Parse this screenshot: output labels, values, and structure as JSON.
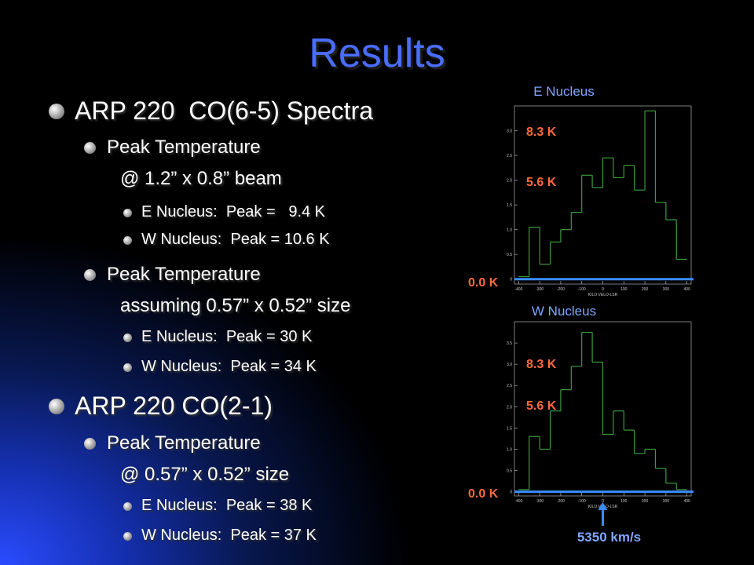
{
  "title": "Results",
  "bullets": [
    {
      "text": "ARP 220  CO(6-5) Spectra",
      "items": [
        {
          "lines": [
            "Peak Temperature",
            "@ 1.2” x 0.8” beam"
          ],
          "items": [
            "E Nucleus:  Peak =   9.4 K",
            "W Nucleus:  Peak = 10.6 K"
          ]
        },
        {
          "lines": [
            "Peak Temperature",
            "assuming 0.57” x 0.52” size"
          ],
          "items": [
            "E Nucleus:  Peak = 30 K",
            "W Nucleus:  Peak = 34 K"
          ]
        }
      ]
    },
    {
      "text": "ARP 220 CO(2-1)",
      "items": [
        {
          "lines": [
            "Peak Temperature",
            "@ 0.57” x 0.52” size"
          ],
          "items": [
            "E Nucleus:  Peak = 38 K",
            "W Nucleus:  Peak = 37 K"
          ]
        }
      ]
    }
  ],
  "spectra": [
    {
      "title": "E Nucleus",
      "labels": [
        "8.3 K",
        "5.6 K",
        "0.0 K"
      ],
      "xlabel": "KILO VELO-LSR",
      "bins": [
        -400,
        -350,
        -300,
        -250,
        -200,
        -150,
        -100,
        -50,
        0,
        50,
        100,
        150,
        200,
        250,
        300,
        350,
        400
      ],
      "values": [
        0.05,
        1.05,
        0.3,
        0.75,
        1.0,
        1.35,
        2.1,
        1.85,
        2.45,
        2.05,
        2.3,
        1.8,
        3.4,
        1.55,
        1.2,
        0.4
      ],
      "xlim": [
        -420,
        420
      ],
      "ylim": [
        -0.1,
        3.5
      ],
      "xticks": [
        -400,
        -300,
        -200,
        -100,
        0,
        100,
        200,
        300,
        400
      ],
      "yticks": [
        0,
        {
          "value": 0.5,
          "label": "0.5"
        },
        {
          "value": 1,
          "label": "1.0"
        },
        {
          "value": 1.5,
          "label": "1.5"
        },
        {
          "value": 2,
          "label": "2.0"
        },
        {
          "value": 2.5,
          "label": "2.5"
        },
        {
          "value": 3,
          "label": "3.0"
        }
      ]
    },
    {
      "title": "W Nucleus",
      "labels": [
        "8.3 K",
        "5.6 K",
        "0.0 K"
      ],
      "xlabel": "KILO VELO-LSR",
      "marker": "5350 km/s",
      "bins": [
        -400,
        -350,
        -300,
        -250,
        -200,
        -150,
        -100,
        -50,
        0,
        50,
        100,
        150,
        200,
        250,
        300,
        350,
        400
      ],
      "values": [
        0.05,
        1.3,
        1.0,
        1.9,
        2.4,
        2.95,
        3.75,
        3.05,
        1.35,
        1.9,
        1.45,
        0.9,
        1.0,
        0.55,
        0.2,
        0.05
      ],
      "xlim": [
        -420,
        420
      ],
      "ylim": [
        -0.1,
        4.0
      ],
      "xticks": [
        -400,
        -300,
        -200,
        -100,
        0,
        100,
        200,
        300,
        400
      ],
      "yticks": [
        0,
        {
          "value": 0.5,
          "label": "0.5"
        },
        {
          "value": 1,
          "label": "1.0"
        },
        {
          "value": 1.5,
          "label": "1.5"
        },
        {
          "value": 2,
          "label": "2.0"
        },
        {
          "value": 2.5,
          "label": "2.5"
        },
        {
          "value": 3,
          "label": "3.0"
        },
        {
          "value": 3.5,
          "label": "3.5"
        }
      ]
    }
  ]
}
